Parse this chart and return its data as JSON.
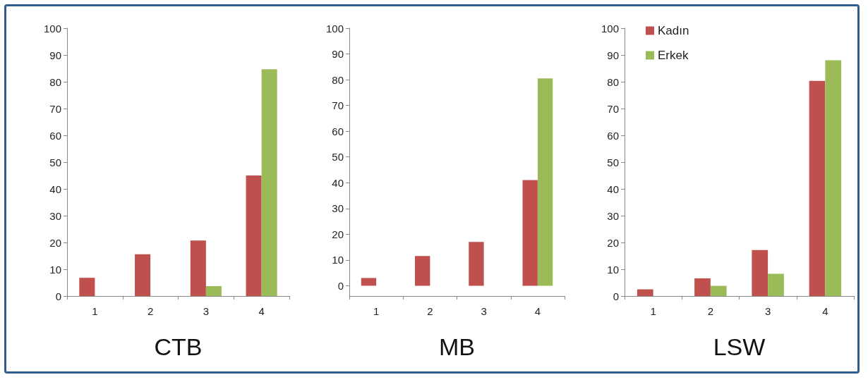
{
  "chart_data": [
    {
      "type": "bar",
      "xlabel": "CTB",
      "categories": [
        "1",
        "2",
        "3",
        "4"
      ],
      "ylim": [
        0,
        100
      ],
      "yticks": [
        0,
        10,
        20,
        30,
        40,
        50,
        60,
        70,
        80,
        90,
        100
      ],
      "grid": false,
      "legend": false,
      "series": [
        {
          "color": "#c0504d",
          "values": [
            6.8,
            15.6,
            20.7,
            45
          ]
        },
        {
          "color": "#9bbb59",
          "values": [
            null,
            null,
            3.7,
            84.7
          ]
        }
      ]
    },
    {
      "type": "bar",
      "xlabel": "MB",
      "categories": [
        "1",
        "2",
        "3",
        "4"
      ],
      "ylim": [
        -4,
        100
      ],
      "yticks": [
        0,
        10,
        20,
        30,
        40,
        50,
        60,
        70,
        80,
        90,
        100
      ],
      "grid": false,
      "legend": false,
      "series": [
        {
          "color": "#c0504d",
          "values": [
            3,
            11.5,
            17,
            41
          ]
        },
        {
          "color": "#9bbb59",
          "values": [
            null,
            null,
            0,
            80.5
          ]
        }
      ]
    },
    {
      "type": "bar",
      "xlabel": "LSW",
      "categories": [
        "1",
        "2",
        "3",
        "4"
      ],
      "ylim": [
        0,
        100
      ],
      "yticks": [
        0,
        10,
        20,
        30,
        40,
        50,
        60,
        70,
        80,
        90,
        100
      ],
      "grid": false,
      "legend": "top left",
      "series": [
        {
          "name": "Kadın",
          "color": "#c0504d",
          "values": [
            2.5,
            6.6,
            17.2,
            80.3
          ]
        },
        {
          "name": "Erkek",
          "color": "#9bbb59",
          "values": [
            null,
            3.8,
            8.3,
            88
          ]
        }
      ]
    }
  ]
}
